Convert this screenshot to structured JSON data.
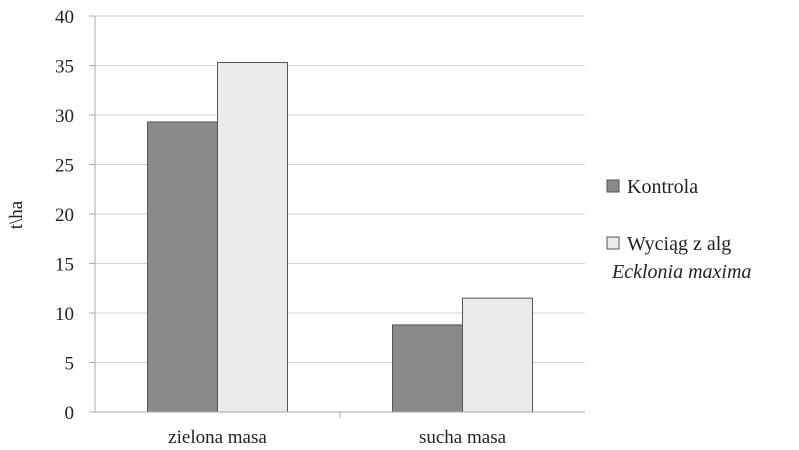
{
  "chart_data": {
    "type": "bar",
    "categories": [
      "zielona masa",
      "sucha masa"
    ],
    "series": [
      {
        "name": "Kontrola",
        "values": [
          29.3,
          8.8
        ],
        "color": "#8a8a8a"
      },
      {
        "name": "Wyciąg z alg",
        "name_line2": "Ecklonia maxima",
        "values": [
          35.3,
          11.5
        ],
        "color": "#ebebeb"
      }
    ],
    "ylabel": "t\\ha",
    "ylim": [
      0,
      40
    ],
    "yticks": [
      0,
      5,
      10,
      15,
      20,
      25,
      30,
      35,
      40
    ],
    "grid": true,
    "legend": "right"
  }
}
